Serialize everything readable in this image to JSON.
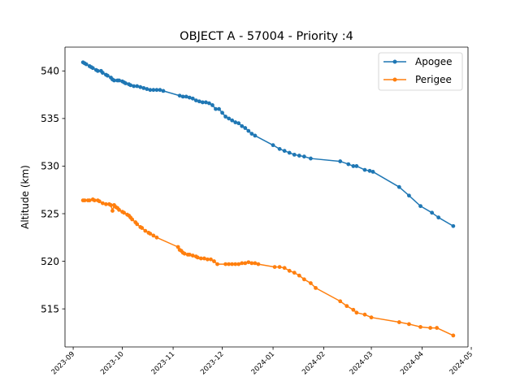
{
  "chart_data": {
    "type": "line",
    "title": "OBJECT A - 57004 - Priority :4",
    "xlabel": "",
    "ylabel": "Altitude (km)",
    "x_type": "date",
    "xlim": [
      "2023-08-27",
      "2024-04-29"
    ],
    "ylim": [
      511.0,
      542.5
    ],
    "x_ticks": [
      "2023-09",
      "2023-10",
      "2023-11",
      "2023-12",
      "2024-01",
      "2024-02",
      "2024-03",
      "2024-04",
      "2024-05"
    ],
    "y_ticks": [
      515,
      520,
      525,
      530,
      535,
      540
    ],
    "grid": false,
    "legend_position": "top-right",
    "series": [
      {
        "name": "Apogee",
        "color": "#1f77b4",
        "marker": "circle",
        "points": [
          [
            "2023-09-07",
            540.9
          ],
          [
            "2023-09-08",
            540.8
          ],
          [
            "2023-09-09",
            540.7
          ],
          [
            "2023-09-11",
            540.5
          ],
          [
            "2023-09-12",
            540.4
          ],
          [
            "2023-09-13",
            540.3
          ],
          [
            "2023-09-15",
            540.1
          ],
          [
            "2023-09-16",
            540.0
          ],
          [
            "2023-09-18",
            540.0
          ],
          [
            "2023-09-19",
            539.8
          ],
          [
            "2023-09-21",
            539.6
          ],
          [
            "2023-09-22",
            539.5
          ],
          [
            "2023-09-24",
            539.3
          ],
          [
            "2023-09-25",
            539.1
          ],
          [
            "2023-09-26",
            539.0
          ],
          [
            "2023-09-28",
            539.0
          ],
          [
            "2023-09-29",
            539.0
          ],
          [
            "2023-10-01",
            538.9
          ],
          [
            "2023-10-02",
            538.8
          ],
          [
            "2023-10-03",
            538.7
          ],
          [
            "2023-10-05",
            538.6
          ],
          [
            "2023-10-06",
            538.5
          ],
          [
            "2023-10-08",
            538.4
          ],
          [
            "2023-10-10",
            538.4
          ],
          [
            "2023-10-12",
            538.3
          ],
          [
            "2023-10-14",
            538.2
          ],
          [
            "2023-10-16",
            538.1
          ],
          [
            "2023-10-18",
            538.0
          ],
          [
            "2023-10-20",
            538.0
          ],
          [
            "2023-10-22",
            538.0
          ],
          [
            "2023-10-24",
            538.0
          ],
          [
            "2023-10-26",
            537.9
          ],
          [
            "2023-11-05",
            537.4
          ],
          [
            "2023-11-07",
            537.3
          ],
          [
            "2023-11-09",
            537.3
          ],
          [
            "2023-11-11",
            537.2
          ],
          [
            "2023-11-13",
            537.1
          ],
          [
            "2023-11-15",
            536.9
          ],
          [
            "2023-11-17",
            536.8
          ],
          [
            "2023-11-19",
            536.7
          ],
          [
            "2023-11-21",
            536.7
          ],
          [
            "2023-11-23",
            536.6
          ],
          [
            "2023-11-25",
            536.4
          ],
          [
            "2023-11-27",
            536.0
          ],
          [
            "2023-11-29",
            536.0
          ],
          [
            "2023-12-01",
            535.6
          ],
          [
            "2023-12-03",
            535.2
          ],
          [
            "2023-12-05",
            535.0
          ],
          [
            "2023-12-07",
            534.8
          ],
          [
            "2023-12-09",
            534.6
          ],
          [
            "2023-12-11",
            534.5
          ],
          [
            "2023-12-13",
            534.2
          ],
          [
            "2023-12-15",
            534.0
          ],
          [
            "2023-12-17",
            533.7
          ],
          [
            "2023-12-19",
            533.4
          ],
          [
            "2023-12-21",
            533.2
          ],
          [
            "2024-01-01",
            532.2
          ],
          [
            "2024-01-05",
            531.8
          ],
          [
            "2024-01-08",
            531.6
          ],
          [
            "2024-01-11",
            531.4
          ],
          [
            "2024-01-14",
            531.2
          ],
          [
            "2024-01-17",
            531.1
          ],
          [
            "2024-01-20",
            531.0
          ],
          [
            "2024-01-24",
            530.8
          ],
          [
            "2024-02-11",
            530.5
          ],
          [
            "2024-02-16",
            530.2
          ],
          [
            "2024-02-19",
            530.0
          ],
          [
            "2024-02-21",
            530.0
          ],
          [
            "2024-02-26",
            529.6
          ],
          [
            "2024-02-29",
            529.5
          ],
          [
            "2024-03-02",
            529.4
          ],
          [
            "2024-03-18",
            527.8
          ],
          [
            "2024-03-24",
            526.9
          ],
          [
            "2024-03-31",
            525.8
          ],
          [
            "2024-04-07",
            525.1
          ],
          [
            "2024-04-11",
            524.6
          ],
          [
            "2024-04-20",
            523.7
          ]
        ]
      },
      {
        "name": "Perigee",
        "color": "#ff7f0e",
        "marker": "circle",
        "points": [
          [
            "2023-09-07",
            526.4
          ],
          [
            "2023-09-08",
            526.4
          ],
          [
            "2023-09-10",
            526.4
          ],
          [
            "2023-09-11",
            526.4
          ],
          [
            "2023-09-13",
            526.5
          ],
          [
            "2023-09-14",
            526.4
          ],
          [
            "2023-09-16",
            526.4
          ],
          [
            "2023-09-17",
            526.3
          ],
          [
            "2023-09-19",
            526.1
          ],
          [
            "2023-09-21",
            526.0
          ],
          [
            "2023-09-23",
            526.0
          ],
          [
            "2023-09-24",
            525.9
          ],
          [
            "2023-09-25",
            525.3
          ],
          [
            "2023-09-26",
            525.9
          ],
          [
            "2023-09-27",
            525.7
          ],
          [
            "2023-09-28",
            525.6
          ],
          [
            "2023-09-29",
            525.4
          ],
          [
            "2023-10-01",
            525.2
          ],
          [
            "2023-10-02",
            525.1
          ],
          [
            "2023-10-04",
            524.9
          ],
          [
            "2023-10-05",
            524.8
          ],
          [
            "2023-10-06",
            524.6
          ],
          [
            "2023-10-07",
            524.4
          ],
          [
            "2023-10-09",
            524.1
          ],
          [
            "2023-10-10",
            523.9
          ],
          [
            "2023-10-12",
            523.6
          ],
          [
            "2023-10-13",
            523.5
          ],
          [
            "2023-10-15",
            523.2
          ],
          [
            "2023-10-17",
            523.0
          ],
          [
            "2023-10-18",
            522.9
          ],
          [
            "2023-10-20",
            522.7
          ],
          [
            "2023-10-22",
            522.5
          ],
          [
            "2023-11-04",
            521.5
          ],
          [
            "2023-11-05",
            521.2
          ],
          [
            "2023-11-06",
            521.1
          ],
          [
            "2023-11-07",
            520.9
          ],
          [
            "2023-11-08",
            520.8
          ],
          [
            "2023-11-10",
            520.7
          ],
          [
            "2023-11-11",
            520.7
          ],
          [
            "2023-11-13",
            520.6
          ],
          [
            "2023-11-15",
            520.5
          ],
          [
            "2023-11-16",
            520.4
          ],
          [
            "2023-11-18",
            520.3
          ],
          [
            "2023-11-20",
            520.3
          ],
          [
            "2023-11-22",
            520.2
          ],
          [
            "2023-11-24",
            520.2
          ],
          [
            "2023-11-26",
            520.0
          ],
          [
            "2023-11-28",
            519.7
          ],
          [
            "2023-12-03",
            519.7
          ],
          [
            "2023-12-05",
            519.7
          ],
          [
            "2023-12-07",
            519.7
          ],
          [
            "2023-12-09",
            519.7
          ],
          [
            "2023-12-11",
            519.7
          ],
          [
            "2023-12-13",
            519.8
          ],
          [
            "2023-12-15",
            519.8
          ],
          [
            "2023-12-17",
            519.9
          ],
          [
            "2023-12-19",
            519.8
          ],
          [
            "2023-12-21",
            519.8
          ],
          [
            "2023-12-23",
            519.7
          ],
          [
            "2024-01-02",
            519.4
          ],
          [
            "2024-01-05",
            519.4
          ],
          [
            "2024-01-08",
            519.3
          ],
          [
            "2024-01-11",
            519.0
          ],
          [
            "2024-01-14",
            518.8
          ],
          [
            "2024-01-17",
            518.5
          ],
          [
            "2024-01-20",
            518.1
          ],
          [
            "2024-01-24",
            517.7
          ],
          [
            "2024-01-27",
            517.2
          ],
          [
            "2024-02-11",
            515.8
          ],
          [
            "2024-02-15",
            515.3
          ],
          [
            "2024-02-19",
            514.9
          ],
          [
            "2024-02-21",
            514.6
          ],
          [
            "2024-02-26",
            514.4
          ],
          [
            "2024-03-01",
            514.1
          ],
          [
            "2024-03-18",
            513.6
          ],
          [
            "2024-03-24",
            513.4
          ],
          [
            "2024-03-31",
            513.1
          ],
          [
            "2024-04-06",
            513.0
          ],
          [
            "2024-04-10",
            513.0
          ],
          [
            "2024-04-20",
            512.2
          ]
        ]
      }
    ]
  }
}
